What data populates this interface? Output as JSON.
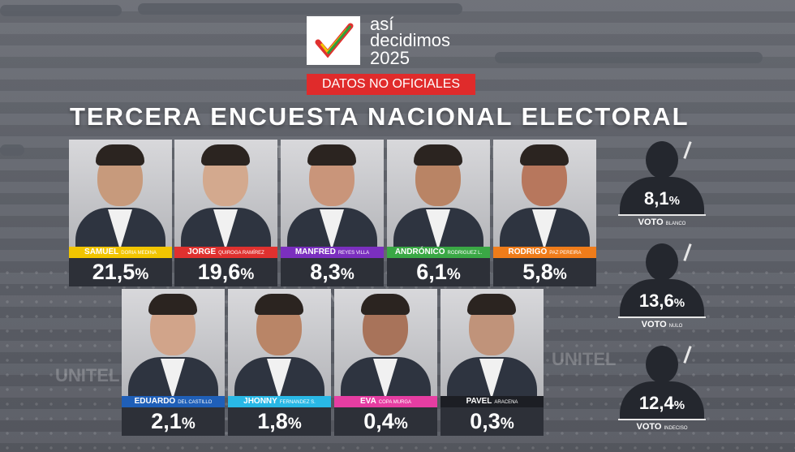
{
  "header": {
    "logo_line1": "así",
    "logo_line2": "decidimos",
    "logo_line3": "2025",
    "badge": "DATOS NO OFICIALES",
    "title": "TERCERA ENCUESTA NACIONAL ELECTORAL"
  },
  "watermark": "UNITEL",
  "colors": {
    "badge": "#e02b2b",
    "panel": "#2d3038"
  },
  "candidates": [
    {
      "first": "SAMUEL",
      "last": "DORIA MEDINA",
      "pct_int": "21,5",
      "pct_sign": "%",
      "bar": "#f2c500",
      "skin": "#c79a7c"
    },
    {
      "first": "JORGE",
      "last": "QUIROGA RAMÍREZ",
      "pct_int": "19,6",
      "pct_sign": "%",
      "bar": "#e0312f",
      "skin": "#d3a98e"
    },
    {
      "first": "MANFRED",
      "last": "REYES VILLA",
      "pct_int": "8,3",
      "pct_sign": "%",
      "bar": "#7b2fbf",
      "skin": "#c9957a"
    },
    {
      "first": "ANDRÓNICO",
      "last": "RODRIGUEZ L.",
      "pct_int": "6,1",
      "pct_sign": "%",
      "bar": "#3aa845",
      "skin": "#b98465"
    },
    {
      "first": "RODRIGO",
      "last": "PAZ PEREIRA",
      "pct_int": "5,8",
      "pct_sign": "%",
      "bar": "#f07c1a",
      "skin": "#b7775d"
    },
    {
      "first": "EDUARDO",
      "last": "DEL CASTILLO",
      "pct_int": "2,1",
      "pct_sign": "%",
      "bar": "#1f5fb8",
      "skin": "#d1a48a"
    },
    {
      "first": "JHONNY",
      "last": "FERNANDEZ S.",
      "pct_int": "1,8",
      "pct_sign": "%",
      "bar": "#29b8e6",
      "skin": "#b98567"
    },
    {
      "first": "EVA",
      "last": "COPA MURGA",
      "pct_int": "0,4",
      "pct_sign": "%",
      "bar": "#e63da2",
      "skin": "#a8735a"
    },
    {
      "first": "PAVEL",
      "last": "ARACENA",
      "pct_int": "0,3",
      "pct_sign": "%",
      "bar": "#1c1e24",
      "skin": "#c0937a"
    }
  ],
  "votes": [
    {
      "pct_int": "8,1",
      "pct_sign": "%",
      "label": "VOTO",
      "label_small": "BLANCO"
    },
    {
      "pct_int": "13,6",
      "pct_sign": "%",
      "label": "VOTO",
      "label_small": "NULO"
    },
    {
      "pct_int": "12,4",
      "pct_sign": "%",
      "label": "VOTO",
      "label_small": "INDECISO"
    }
  ]
}
